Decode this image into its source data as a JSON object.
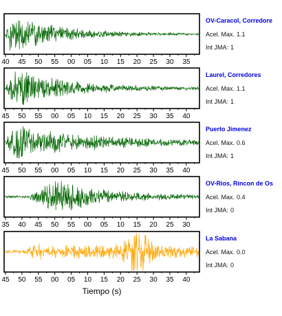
{
  "chart_data": {
    "type": "line",
    "xlabel": "Tiempo (s)",
    "panels": [
      {
        "station": "OV-Caracol, Corredore",
        "acel_label": "Acel. Max.",
        "acel_max": "1.1",
        "jma_label": "Int JMA:",
        "jma": "1",
        "color": "#006400",
        "tick_labels": [
          "40",
          "45",
          "50",
          "55",
          "00",
          "05",
          "10",
          "15",
          "20",
          "25",
          "30",
          "35"
        ],
        "shape": {
          "onset": 0.0,
          "rise": 0.03,
          "decay": 0.25,
          "amp": 0.95,
          "floor": 0.04,
          "burst_at": null,
          "burst_amp": 0,
          "burst_width": 0
        }
      },
      {
        "station": "Laurel, Corredores",
        "acel_label": "Acel. Max.",
        "acel_max": "1.1",
        "jma_label": "Int JMA:",
        "jma": "1",
        "color": "#006400",
        "tick_labels": [
          "45",
          "50",
          "55",
          "00",
          "05",
          "10",
          "15",
          "20",
          "25",
          "30",
          "35",
          "40"
        ],
        "shape": {
          "onset": 0.0,
          "rise": 0.06,
          "decay": 0.28,
          "amp": 0.9,
          "floor": 0.05,
          "burst_at": null,
          "burst_amp": 0,
          "burst_width": 0
        }
      },
      {
        "station": "Puerto Jimenez",
        "acel_label": "Acel. Max.",
        "acel_max": "0.6",
        "jma_label": "Int JMA:",
        "jma": "1",
        "color": "#006400",
        "tick_labels": [
          "45",
          "50",
          "55",
          "00",
          "05",
          "10",
          "15",
          "20",
          "25",
          "30",
          "35",
          "40"
        ],
        "shape": {
          "onset": 0.0,
          "rise": 0.05,
          "decay": 0.4,
          "amp": 0.8,
          "floor": 0.08,
          "burst_at": null,
          "burst_amp": 0,
          "burst_width": 0
        }
      },
      {
        "station": "OV-Rios, Rincon de Os",
        "acel_label": "Acel. Max.",
        "acel_max": "0.4",
        "jma_label": "Int JMA:",
        "jma": "0",
        "color": "#006400",
        "tick_labels": [
          "35",
          "40",
          "45",
          "50",
          "55",
          "00",
          "05",
          "10",
          "15",
          "20",
          "25",
          "30"
        ],
        "shape": {
          "onset": 0.12,
          "rise": 0.12,
          "decay": 0.3,
          "amp": 0.75,
          "floor": 0.06,
          "burst_at": 0.33,
          "burst_amp": 0.2,
          "burst_width": 0.08
        }
      },
      {
        "station": "La Sabana",
        "acel_label": "Acel. Max.",
        "acel_max": "0.0",
        "jma_label": "Int JMA:",
        "jma": "0",
        "color": "#ffa500",
        "tick_labels": [
          "45",
          "50",
          "55",
          "00",
          "05",
          "10",
          "15",
          "20",
          "25",
          "30",
          "35",
          "40"
        ],
        "shape": {
          "onset": 0.1,
          "rise": 0.05,
          "decay": 2.0,
          "amp": 0.3,
          "floor": 0.1,
          "burst_at": 0.68,
          "burst_amp": 0.9,
          "burst_width": 0.06
        }
      }
    ]
  }
}
